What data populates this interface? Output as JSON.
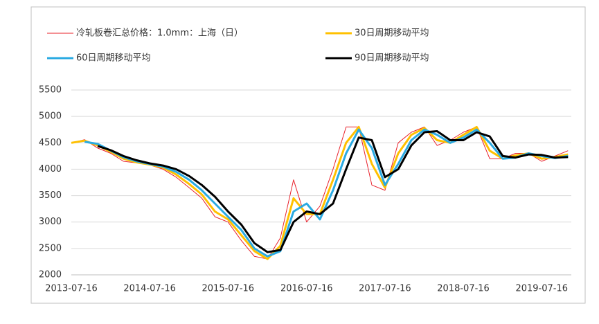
{
  "chart_data": {
    "type": "line",
    "x": [
      "2013-07-16",
      "2013-09-16",
      "2013-11-16",
      "2014-01-16",
      "2014-03-16",
      "2014-05-16",
      "2014-07-16",
      "2014-09-16",
      "2014-11-16",
      "2015-01-16",
      "2015-03-16",
      "2015-05-16",
      "2015-07-16",
      "2015-09-16",
      "2015-11-16",
      "2016-01-16",
      "2016-03-16",
      "2016-05-16",
      "2016-07-16",
      "2016-09-16",
      "2016-11-16",
      "2017-01-16",
      "2017-03-16",
      "2017-05-16",
      "2017-07-16",
      "2017-09-16",
      "2017-11-16",
      "2018-01-16",
      "2018-03-16",
      "2018-05-16",
      "2018-07-16",
      "2018-09-16",
      "2018-11-16",
      "2019-01-16",
      "2019-03-16",
      "2019-05-16",
      "2019-07-16",
      "2019-09-16",
      "2019-11-16"
    ],
    "series": [
      {
        "name": "冷轧板卷汇总价格：1.0mm：上海（日）",
        "color": "#e8202a",
        "width": 1,
        "values": [
          4500,
          4560,
          4400,
          4300,
          4150,
          4120,
          4080,
          4000,
          3850,
          3650,
          3450,
          3100,
          3000,
          2650,
          2350,
          2300,
          2700,
          3800,
          3000,
          3300,
          4000,
          4800,
          4800,
          3700,
          3600,
          4500,
          4700,
          4800,
          4450,
          4550,
          4700,
          4800,
          4200,
          4200,
          4300,
          4300,
          4150,
          4250,
          4350
        ]
      },
      {
        "name": "30日周期移动平均",
        "color": "#ffc000",
        "width": 3,
        "values": [
          4500,
          4540,
          4450,
          4330,
          4200,
          4130,
          4090,
          4030,
          3900,
          3720,
          3520,
          3200,
          3050,
          2750,
          2450,
          2300,
          2550,
          3450,
          3150,
          3150,
          3800,
          4500,
          4800,
          4100,
          3650,
          4300,
          4650,
          4780,
          4550,
          4500,
          4650,
          4800,
          4350,
          4200,
          4260,
          4300,
          4200,
          4230,
          4280
        ]
      },
      {
        "name": "60日周期移动平均",
        "color": "#2aaae2",
        "width": 3,
        "values": [
          null,
          4520,
          4480,
          4350,
          4230,
          4150,
          4100,
          4050,
          3950,
          3800,
          3600,
          3350,
          3100,
          2850,
          2500,
          2350,
          2450,
          3200,
          3350,
          3050,
          3600,
          4300,
          4750,
          4400,
          3700,
          4100,
          4550,
          4750,
          4650,
          4500,
          4600,
          4750,
          4500,
          4200,
          4220,
          4300,
          4250,
          4210,
          4250
        ]
      },
      {
        "name": "90日周期移动平均",
        "color": "#000000",
        "width": 3,
        "values": [
          null,
          null,
          4440,
          4360,
          4250,
          4170,
          4110,
          4070,
          4000,
          3870,
          3700,
          3480,
          3200,
          2950,
          2600,
          2430,
          2470,
          3000,
          3200,
          3150,
          3350,
          4000,
          4600,
          4550,
          3850,
          4000,
          4450,
          4700,
          4720,
          4550,
          4550,
          4700,
          4620,
          4250,
          4220,
          4280,
          4270,
          4220,
          4230
        ]
      }
    ],
    "xlim": [
      "2013-07-16",
      "2019-12-01"
    ],
    "xticks": [
      "2013-07-16",
      "2014-07-16",
      "2015-07-16",
      "2016-07-16",
      "2017-07-16",
      "2018-07-16",
      "2019-07-16"
    ],
    "ylim": [
      2000,
      5500
    ],
    "yticks": [
      2000,
      2500,
      3000,
      3500,
      4000,
      4500,
      5000,
      5500
    ],
    "grid": true
  }
}
